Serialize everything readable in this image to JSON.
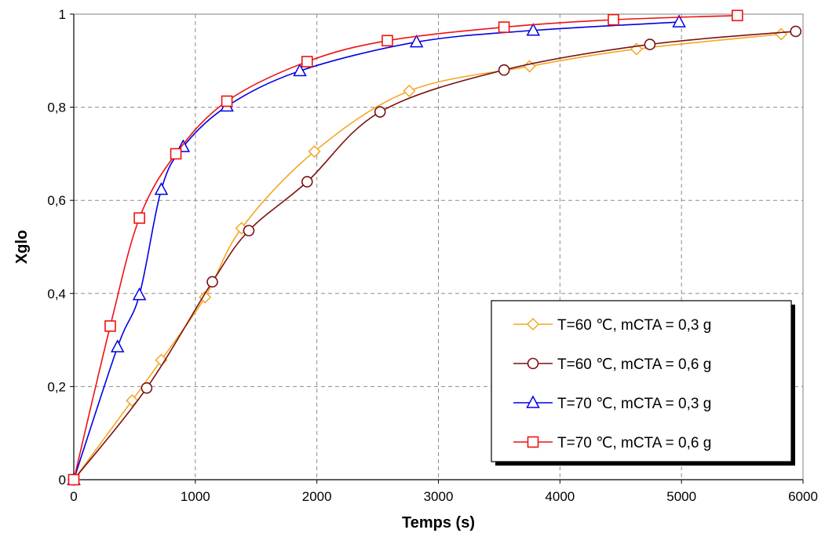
{
  "chart_data": {
    "type": "line",
    "title": "",
    "xlabel": "Temps (s)",
    "ylabel": "Xglo",
    "xlim": [
      0,
      6000
    ],
    "ylim": [
      0,
      1
    ],
    "xticks": [
      0,
      1000,
      2000,
      3000,
      4000,
      5000,
      6000
    ],
    "xtick_labels": [
      "0",
      "1000",
      "2000",
      "3000",
      "4000",
      "5000",
      "6000"
    ],
    "yticks": [
      0,
      0.2,
      0.4,
      0.6,
      0.8,
      1
    ],
    "ytick_labels": [
      "0",
      "0,2",
      "0,4",
      "0,6",
      "0,8",
      "1"
    ],
    "grid": true,
    "grid_style": "dashed",
    "legend_position": "bottom-right",
    "series": [
      {
        "name": "T=60 ℃, mCTA = 0,3 g",
        "color": "#f5a623",
        "marker": "diamond",
        "x": [
          0,
          480,
          720,
          1080,
          1380,
          1980,
          2760,
          3750,
          4630,
          5820
        ],
        "y": [
          0,
          0.17,
          0.257,
          0.392,
          0.54,
          0.705,
          0.835,
          0.888,
          0.925,
          0.957
        ]
      },
      {
        "name": "T=60 ℃, mCTA = 0,6 g",
        "color": "#7b1212",
        "marker": "circle",
        "x": [
          0,
          600,
          1140,
          1440,
          1920,
          2520,
          3540,
          4740,
          5940
        ],
        "y": [
          0,
          0.197,
          0.425,
          0.535,
          0.64,
          0.79,
          0.88,
          0.935,
          0.963
        ]
      },
      {
        "name": "T=70 ℃, mCTA = 0,3 g",
        "color": "#0000e6",
        "marker": "triangle",
        "x": [
          0,
          360,
          540,
          720,
          900,
          1260,
          1860,
          2820,
          3780,
          4980
        ],
        "y": [
          0,
          0.285,
          0.397,
          0.623,
          0.715,
          0.802,
          0.878,
          0.94,
          0.965,
          0.983
        ]
      },
      {
        "name": "T=70 ℃, mCTA = 0,6 g",
        "color": "#ee1111",
        "marker": "square",
        "x": [
          0,
          300,
          540,
          840,
          1260,
          1920,
          2580,
          3540,
          4440,
          5460
        ],
        "y": [
          0,
          0.33,
          0.562,
          0.7,
          0.813,
          0.898,
          0.943,
          0.972,
          0.988,
          0.997
        ]
      }
    ]
  }
}
